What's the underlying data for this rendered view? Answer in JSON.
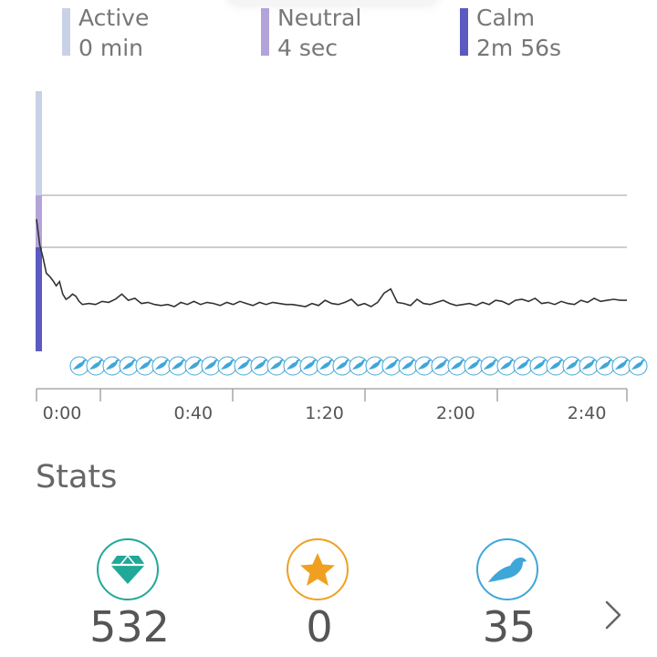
{
  "legend": [
    {
      "title": "Active",
      "value": "0 min",
      "color": "#c8d1e6"
    },
    {
      "title": "Neutral",
      "value": "4 sec",
      "color": "#b4a3d9"
    },
    {
      "title": "Calm",
      "value": "2m 56s",
      "color": "#5b5ac0"
    }
  ],
  "chart_data": {
    "type": "line",
    "x_unit": "seconds",
    "xlim": [
      0,
      180
    ],
    "x_ticks": [
      "0:00",
      "0:40",
      "1:20",
      "2:00",
      "2:40"
    ],
    "x_tick_values": [
      0,
      40,
      80,
      120,
      160
    ],
    "zones": [
      "Active",
      "Neutral",
      "Calm"
    ],
    "zone_colors": [
      "#c8d1e6",
      "#b4a3d9",
      "#5b5ac0"
    ],
    "x": [
      0,
      1,
      2,
      3,
      4,
      5,
      6,
      7,
      8,
      9,
      10,
      11,
      12,
      13,
      14,
      16,
      18,
      20,
      22,
      24,
      26,
      28,
      30,
      32,
      34,
      36,
      38,
      40,
      42,
      44,
      46,
      48,
      50,
      52,
      54,
      56,
      58,
      60,
      62,
      64,
      66,
      68,
      70,
      72,
      74,
      76,
      78,
      80,
      82,
      84,
      86,
      88,
      90,
      92,
      94,
      96,
      98,
      100,
      102,
      104,
      106,
      108,
      110,
      112,
      114,
      116,
      118,
      120,
      122,
      124,
      126,
      128,
      130,
      132,
      134,
      136,
      138,
      140,
      142,
      144,
      146,
      148,
      150,
      152,
      154,
      156,
      158,
      160,
      162,
      164,
      166,
      168,
      170,
      172,
      174,
      176,
      178,
      180
    ],
    "values": [
      1.77,
      1.52,
      1.4,
      1.25,
      1.22,
      1.18,
      1.13,
      1.17,
      1.05,
      1.0,
      1.02,
      1.05,
      1.03,
      0.98,
      0.95,
      0.96,
      0.95,
      0.98,
      0.97,
      1.0,
      1.05,
      0.99,
      1.01,
      0.96,
      0.97,
      0.95,
      0.94,
      0.95,
      0.93,
      0.97,
      0.95,
      0.98,
      0.95,
      0.97,
      0.96,
      0.94,
      0.97,
      0.95,
      0.98,
      0.96,
      0.94,
      0.97,
      0.95,
      0.97,
      0.96,
      0.95,
      0.95,
      0.94,
      0.93,
      0.96,
      0.94,
      0.99,
      0.96,
      0.95,
      0.97,
      1.0,
      0.94,
      0.96,
      0.93,
      0.97,
      1.06,
      1.1,
      0.97,
      0.96,
      0.94,
      1.0,
      0.96,
      0.95,
      0.97,
      0.99,
      0.96,
      0.94,
      0.95,
      0.96,
      0.94,
      0.97,
      0.95,
      0.99,
      0.98,
      0.95,
      0.99,
      1.0,
      0.98,
      1.01,
      0.96,
      0.97,
      0.95,
      0.98,
      0.96,
      0.95,
      0.99,
      0.97,
      1.01,
      0.98,
      0.99,
      1.0,
      0.99,
      0.99
    ],
    "ylim": [
      0.5,
      3.0
    ],
    "zone_boundaries": [
      2.0,
      1.5
    ],
    "bird_count": 35
  },
  "stats": {
    "title": "Stats",
    "items": [
      {
        "icon": "gem-icon",
        "color": "#20a898",
        "value": "532"
      },
      {
        "icon": "star-icon",
        "color": "#f0a020",
        "value": "0"
      },
      {
        "icon": "bird-icon",
        "color": "#3fa6d8",
        "value": "35"
      }
    ]
  }
}
